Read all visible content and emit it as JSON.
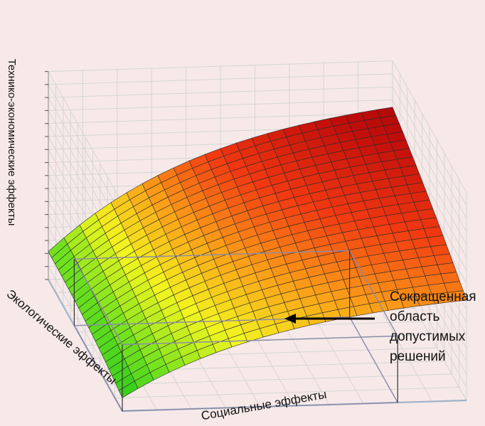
{
  "chart_data": {
    "type": "surface",
    "axes": {
      "x_label": "Социальные эффекты",
      "y_label": "Экологические эффекты",
      "z_label": "Технико-экономические эффекты"
    },
    "grid": true,
    "colormap": [
      "#0fc21a",
      "#73e21f",
      "#f2f520",
      "#fb9d18",
      "#f13811",
      "#c10d0b",
      "#8e0303"
    ],
    "surface_shape": "concave; rises with both effects, highest at far corner",
    "annotation": {
      "lines": [
        "Сокращенная",
        "область",
        "допустимых",
        "решений"
      ]
    }
  }
}
